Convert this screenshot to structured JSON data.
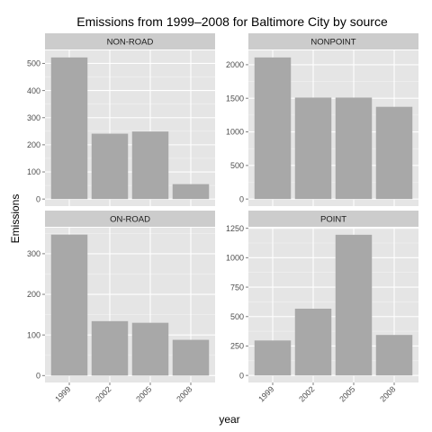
{
  "chart_data": {
    "type": "bar",
    "title": "Emissions from 1999–2008 for Baltimore City by source",
    "xlabel": "year",
    "ylabel": "Emissions",
    "categories": [
      "1999",
      "2002",
      "2005",
      "2008"
    ],
    "bar_color": "#a8a8a8",
    "panel_background": "#e5e5e5",
    "strip_background": "#cccccc",
    "grid": true,
    "facets": [
      {
        "name": "NON-ROAD",
        "values": [
          522,
          241,
          249,
          55
        ],
        "ylim": [
          -26,
          548
        ],
        "yticks": [
          0,
          100,
          200,
          300,
          400,
          500
        ]
      },
      {
        "name": "NONPOINT",
        "values": [
          2108,
          1510,
          1510,
          1373
        ],
        "ylim": [
          -105,
          2213
        ],
        "yticks": [
          0,
          500,
          1000,
          1500,
          2000
        ]
      },
      {
        "name": "ON-ROAD",
        "values": [
          347,
          134,
          130,
          88
        ],
        "ylim": [
          -17,
          364
        ],
        "yticks": [
          0,
          100,
          200,
          300
        ]
      },
      {
        "name": "POINT",
        "values": [
          297,
          567,
          1195,
          344
        ],
        "ylim": [
          -60,
          1255
        ],
        "yticks": [
          0,
          250,
          500,
          750,
          1000,
          1250
        ]
      }
    ]
  }
}
